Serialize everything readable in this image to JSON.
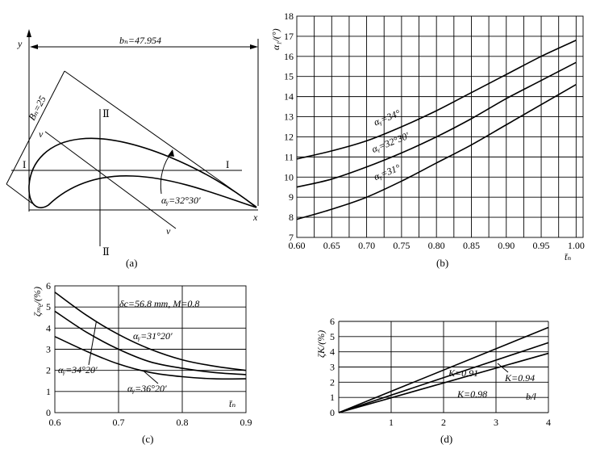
{
  "panel_a": {
    "caption": "(a)",
    "axis_x": "x",
    "axis_y": "y",
    "b_label": "bₙ=47.954",
    "B_label": "Bₙ=25",
    "alpha_label": "αᵧ=32°30′",
    "section_I_left": "I",
    "section_I_right": "I",
    "section_II_top": "Ⅱ",
    "section_II_bottom": "Ⅱ",
    "v_top": "v",
    "v_bottom": "v"
  },
  "panel_b": {
    "caption": "(b)",
    "ylabel": "α₁/(°)",
    "xlabel": "t̄ₙ"
  },
  "panel_c": {
    "caption": "(c)",
    "ylabel": "ζₘᵨ/(%)",
    "xlabel": "t̄ₙ",
    "note": "δc=56.8 mm,  M=0.8"
  },
  "panel_d": {
    "caption": "(d)",
    "ylabel": "ζK/(%)",
    "xlabel": "b/l"
  },
  "chart_data": [
    {
      "type": "line",
      "panel": "b",
      "ylabel": "α₁/(°)",
      "xlabel": "t̄ₙ",
      "xlim": [
        0.6,
        1.01
      ],
      "ylim": [
        7,
        18
      ],
      "xticks": [
        "0.60",
        "0.65",
        "0.70",
        "0.75",
        "0.80",
        "0.85",
        "0.90",
        "0.95",
        "1.00"
      ],
      "yticks": [
        "7",
        "8",
        "9",
        "10",
        "11",
        "12",
        "13",
        "14",
        "15",
        "16",
        "17",
        "18"
      ],
      "grid": true,
      "series": [
        {
          "name": "αᵧ=34°",
          "x": [
            0.6,
            0.65,
            0.7,
            0.75,
            0.8,
            0.85,
            0.9,
            0.95,
            1.0
          ],
          "y": [
            10.9,
            11.3,
            11.8,
            12.5,
            13.3,
            14.2,
            15.1,
            16.0,
            16.8
          ]
        },
        {
          "name": "αᵧ=32°30′",
          "x": [
            0.6,
            0.65,
            0.7,
            0.75,
            0.8,
            0.85,
            0.9,
            0.95,
            1.0
          ],
          "y": [
            9.5,
            9.9,
            10.5,
            11.2,
            12.0,
            12.9,
            13.9,
            14.8,
            15.7
          ]
        },
        {
          "name": "αᵧ=31°",
          "x": [
            0.6,
            0.65,
            0.7,
            0.75,
            0.8,
            0.85,
            0.9,
            0.95,
            1.0
          ],
          "y": [
            7.9,
            8.4,
            9.0,
            9.8,
            10.7,
            11.6,
            12.6,
            13.6,
            14.6
          ]
        }
      ]
    },
    {
      "type": "line",
      "panel": "c",
      "ylabel": "ζₘᵨ/(%)",
      "xlabel": "t̄ₙ",
      "xlim": [
        0.6,
        0.9
      ],
      "ylim": [
        0,
        6
      ],
      "xticks": [
        "0.6",
        "0.7",
        "0.8",
        "0.9"
      ],
      "yticks": [
        "0",
        "1",
        "2",
        "3",
        "4",
        "5",
        "6"
      ],
      "grid": true,
      "series": [
        {
          "name": "αᵧ=34°20′",
          "x": [
            0.6,
            0.65,
            0.7,
            0.75,
            0.8,
            0.85,
            0.9
          ],
          "y": [
            5.7,
            4.6,
            3.7,
            3.0,
            2.5,
            2.2,
            2.0
          ]
        },
        {
          "name": "αᵧ=31°20′",
          "x": [
            0.6,
            0.65,
            0.7,
            0.75,
            0.8,
            0.85,
            0.9
          ],
          "y": [
            4.8,
            3.8,
            3.0,
            2.4,
            2.1,
            1.9,
            1.8
          ]
        },
        {
          "name": "αᵧ=36°20′",
          "x": [
            0.6,
            0.65,
            0.7,
            0.75,
            0.8,
            0.85,
            0.9
          ],
          "y": [
            3.6,
            2.9,
            2.3,
            1.9,
            1.7,
            1.6,
            1.6
          ]
        }
      ]
    },
    {
      "type": "line",
      "panel": "d",
      "ylabel": "ζK/(%)",
      "xlabel": "b/l",
      "xlim": [
        0,
        4
      ],
      "ylim": [
        0,
        6
      ],
      "xticks": [
        "1",
        "2",
        "3",
        "4"
      ],
      "yticks": [
        "0",
        "1",
        "2",
        "3",
        "4",
        "5",
        "6"
      ],
      "grid": true,
      "series": [
        {
          "name": "K=0.91",
          "x": [
            0,
            4
          ],
          "y": [
            0,
            5.6
          ]
        },
        {
          "name": "K=0.94",
          "x": [
            0,
            4
          ],
          "y": [
            0,
            4.6
          ]
        },
        {
          "name": "K=0.98",
          "x": [
            0,
            4
          ],
          "y": [
            0,
            3.9
          ]
        }
      ]
    }
  ]
}
